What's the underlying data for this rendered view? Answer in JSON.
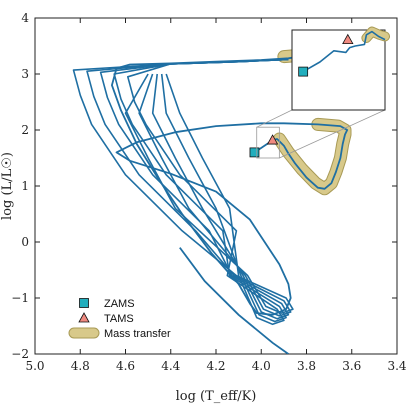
{
  "chart_data": {
    "type": "line",
    "xlabel": "log (T_eff/K)",
    "ylabel": "log (L/L☉)",
    "xlim": [
      5.0,
      3.4
    ],
    "ylim": [
      -2,
      4
    ],
    "x_inverted": true,
    "xticks": [
      "5.0",
      "4.8",
      "4.6",
      "4.4",
      "4.2",
      "4.0",
      "3.8",
      "3.6",
      "3.4"
    ],
    "yticks": [
      "−2",
      "−1",
      "0",
      "1",
      "2",
      "3",
      "4"
    ],
    "colors": {
      "track": "#1f6fa3",
      "mass_transfer": "#d8c98a",
      "mass_transfer_edge": "#a89a55",
      "zams": "#22aebd",
      "tams": "#f08a80",
      "grid": "#e6e6e6"
    },
    "legend": {
      "placement": "lower-left",
      "entries": [
        "ZAMS",
        "TAMS",
        "Mass transfer"
      ]
    },
    "zams": {
      "x": 4.03,
      "y": 1.6
    },
    "tams": {
      "x": 3.95,
      "y": 1.82
    },
    "main_track": [
      [
        4.03,
        1.6
      ],
      [
        4.0,
        1.68
      ],
      [
        3.97,
        1.76
      ],
      [
        3.95,
        1.82
      ],
      [
        3.93,
        1.84
      ],
      [
        3.92,
        1.8
      ],
      [
        3.9,
        1.72
      ],
      [
        3.88,
        1.58
      ],
      [
        3.85,
        1.4
      ],
      [
        3.8,
        1.15
      ],
      [
        3.75,
        0.97
      ],
      [
        3.72,
        0.95
      ],
      [
        3.69,
        1.05
      ],
      [
        3.67,
        1.25
      ],
      [
        3.65,
        1.5
      ],
      [
        3.64,
        1.75
      ],
      [
        3.63,
        1.92
      ],
      [
        3.62,
        2.0
      ],
      [
        3.65,
        2.07
      ],
      [
        3.75,
        2.1
      ],
      [
        3.9,
        2.12
      ],
      [
        4.0,
        2.12
      ],
      [
        4.2,
        2.07
      ],
      [
        4.38,
        1.96
      ],
      [
        4.55,
        1.78
      ],
      [
        4.64,
        1.6
      ],
      [
        4.58,
        1.45
      ],
      [
        4.4,
        1.22
      ],
      [
        4.2,
        0.9
      ],
      [
        4.05,
        0.4
      ],
      [
        3.92,
        -0.4
      ],
      [
        3.88,
        -0.75
      ],
      [
        3.87,
        -1.0
      ],
      [
        3.89,
        -1.2
      ],
      [
        3.95,
        -1.3
      ],
      [
        4.02,
        -1.27
      ],
      [
        4.05,
        -1.1
      ],
      [
        4.1,
        -0.75
      ],
      [
        4.22,
        -0.2
      ],
      [
        4.35,
        0.5
      ],
      [
        4.45,
        1.1
      ],
      [
        4.55,
        1.75
      ],
      [
        4.62,
        2.35
      ],
      [
        4.66,
        2.8
      ],
      [
        4.64,
        3.1
      ],
      [
        4.58,
        3.17
      ],
      [
        4.4,
        3.19
      ],
      [
        4.2,
        3.22
      ],
      [
        4.0,
        3.25
      ],
      [
        3.88,
        3.28
      ],
      [
        3.85,
        3.3
      ]
    ],
    "loops": [
      {
        "left_x": 4.8,
        "top_y": 3.12,
        "bottom_x": 3.86,
        "bottom_y": -1.05
      },
      {
        "left_x": 4.74,
        "top_y": 3.1,
        "bottom_x": 3.87,
        "bottom_y": -1.1
      },
      {
        "left_x": 4.68,
        "top_y": 3.08,
        "bottom_x": 3.88,
        "bottom_y": -1.15
      },
      {
        "left_x": 4.62,
        "top_y": 3.05,
        "bottom_x": 3.89,
        "bottom_y": -1.2
      },
      {
        "left_x": 4.56,
        "top_y": 3.0,
        "bottom_x": 3.9,
        "bottom_y": -1.25
      }
    ],
    "tail": [
      [
        4.36,
        -0.1
      ],
      [
        4.25,
        -0.7
      ],
      [
        4.1,
        -1.3
      ],
      [
        3.95,
        -1.8
      ],
      [
        3.88,
        -2.0
      ]
    ],
    "mass_transfer_segments": [
      [
        [
          3.92,
          1.84
        ],
        [
          3.88,
          1.6
        ],
        [
          3.82,
          1.3
        ],
        [
          3.76,
          1.05
        ],
        [
          3.72,
          0.95
        ],
        [
          3.69,
          1.05
        ],
        [
          3.67,
          1.25
        ],
        [
          3.65,
          1.5
        ],
        [
          3.64,
          1.75
        ],
        [
          3.63,
          1.92
        ],
        [
          3.63,
          2.0
        ],
        [
          3.66,
          2.07
        ],
        [
          3.75,
          2.1
        ]
      ],
      [
        [
          3.9,
          3.31
        ],
        [
          3.84,
          3.33
        ],
        [
          3.8,
          3.34
        ]
      ]
    ],
    "inset": {
      "zams": {
        "u": 0.12,
        "v": 0.52
      },
      "tams": {
        "u": 0.6,
        "v": 0.12
      },
      "track": [
        [
          0.12,
          0.52
        ],
        [
          0.3,
          0.4
        ],
        [
          0.45,
          0.26
        ],
        [
          0.58,
          0.28
        ],
        [
          0.62,
          0.22
        ],
        [
          0.68,
          0.2
        ],
        [
          0.78,
          0.18
        ],
        [
          0.8,
          0.06
        ],
        [
          0.86,
          0.02
        ],
        [
          0.93,
          0.08
        ],
        [
          1.0,
          0.12
        ]
      ],
      "mass_transfer": [
        [
          0.8,
          0.1
        ],
        [
          0.86,
          0.02
        ],
        [
          0.94,
          0.06
        ],
        [
          1.0,
          0.08
        ]
      ]
    }
  }
}
